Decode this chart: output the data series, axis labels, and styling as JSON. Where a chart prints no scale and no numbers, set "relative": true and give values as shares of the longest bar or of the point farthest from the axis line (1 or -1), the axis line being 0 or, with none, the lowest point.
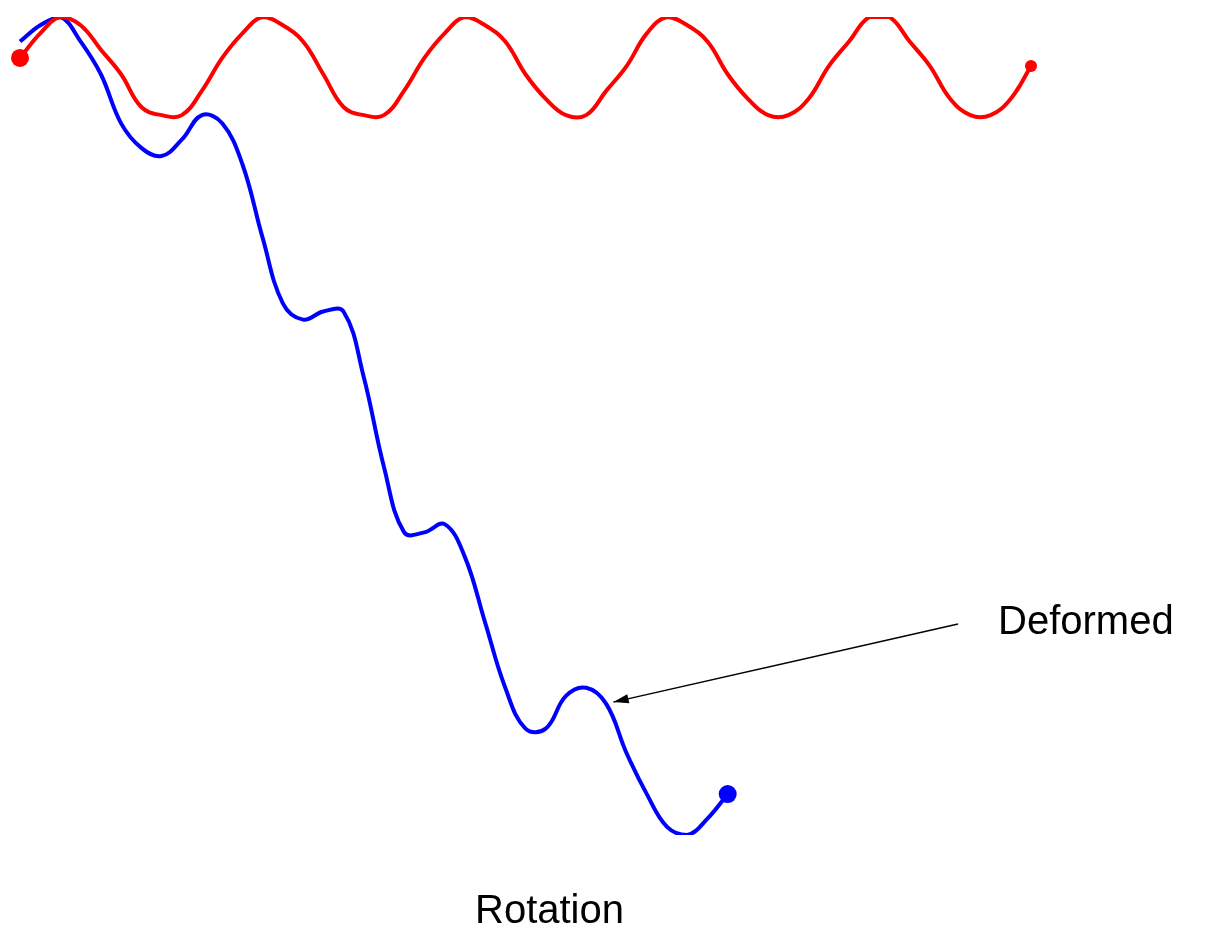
{
  "chart_data": {
    "type": "line",
    "relative": true,
    "xlabel": "Rotation",
    "annotations": [
      "Deformed"
    ],
    "line_style": "solid",
    "categories": [
      null,
      null,
      null,
      null,
      null,
      null,
      null,
      null,
      null,
      null,
      null,
      null,
      null,
      null,
      null,
      null,
      null,
      null,
      null,
      null,
      null,
      null,
      null,
      null,
      null,
      null,
      null,
      null,
      null,
      null,
      null,
      null,
      null,
      null,
      null,
      null,
      null,
      null,
      null,
      null,
      null,
      null,
      null,
      null,
      null,
      null,
      null,
      null,
      null,
      null,
      null
    ],
    "series": [
      {
        "color": "#ff0000",
        "values": [
          0.95,
          0.98,
          1.0,
          0.99,
          0.96,
          0.93,
          0.89,
          0.88,
          0.88,
          0.91,
          0.95,
          0.98,
          1.0,
          0.99,
          0.97,
          0.93,
          0.89,
          0.88,
          0.88,
          0.91,
          0.95,
          0.98,
          1.0,
          0.99,
          0.97,
          0.93,
          0.9,
          0.88,
          0.88,
          0.91,
          0.94,
          0.98,
          1.0,
          0.99,
          0.97,
          0.93,
          0.9,
          0.88,
          0.88,
          0.9,
          0.94,
          0.97,
          1.0,
          1.0,
          0.97,
          0.94,
          0.9,
          0.88,
          0.88,
          0.9,
          0.94
        ]
      },
      {
        "color": "#0000ff",
        "values": [
          0.97,
          0.99,
          1.0,
          0.97,
          0.93,
          0.87,
          0.84,
          0.83,
          0.85,
          0.88,
          0.87,
          0.82,
          0.73,
          0.65,
          0.63,
          0.64,
          0.64,
          0.56,
          0.45,
          0.37,
          0.37,
          0.38,
          0.34,
          0.26,
          0.18,
          0.13,
          0.13,
          0.17,
          0.18,
          0.16,
          0.1,
          0.05,
          0.01,
          0,
          0.02,
          0.05,
          null,
          null,
          null,
          null,
          null,
          null,
          null,
          null,
          null,
          null,
          null,
          null,
          null,
          null,
          null
        ]
      }
    ]
  }
}
